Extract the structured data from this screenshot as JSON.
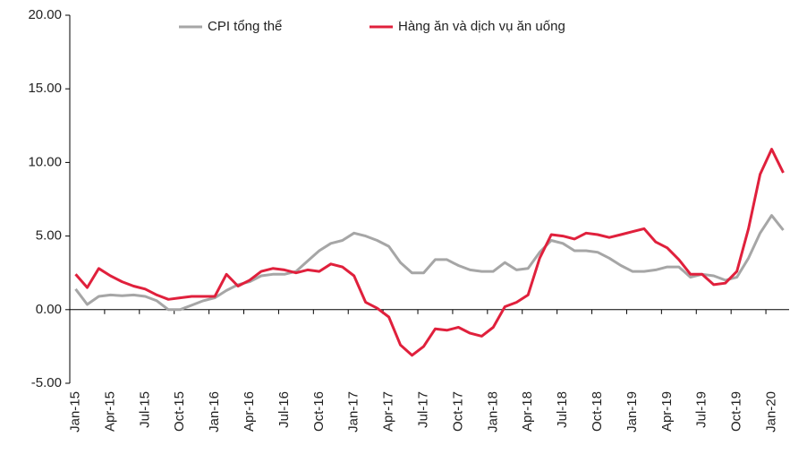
{
  "chart_data": {
    "type": "line",
    "categories": [
      "Jan-15",
      null,
      null,
      "Apr-15",
      null,
      null,
      "Jul-15",
      null,
      null,
      "Oct-15",
      null,
      null,
      "Jan-16",
      null,
      null,
      "Apr-16",
      null,
      null,
      "Jul-16",
      null,
      null,
      "Oct-16",
      null,
      null,
      "Jan-17",
      null,
      null,
      "Apr-17",
      null,
      null,
      "Jul-17",
      null,
      null,
      "Oct-17",
      null,
      null,
      "Jan-18",
      null,
      null,
      "Apr-18",
      null,
      null,
      "Jul-18",
      null,
      null,
      "Oct-18",
      null,
      null,
      "Jan-19",
      null,
      null,
      "Apr-19",
      null,
      null,
      "Jul-19",
      null,
      null,
      "Oct-19",
      null,
      null,
      "Jan-20",
      null
    ],
    "series": [
      {
        "name": "CPI tổng thể",
        "color": "#a6a6a6",
        "values": [
          1.4,
          0.35,
          0.9,
          1.0,
          0.95,
          1.0,
          0.9,
          0.6,
          0.0,
          0.0,
          0.3,
          0.6,
          0.8,
          1.3,
          1.7,
          1.9,
          2.3,
          2.4,
          2.4,
          2.6,
          3.3,
          4.0,
          4.5,
          4.7,
          5.2,
          5.0,
          4.7,
          4.3,
          3.2,
          2.5,
          2.5,
          3.4,
          3.4,
          3.0,
          2.7,
          2.6,
          2.6,
          3.2,
          2.7,
          2.8,
          3.9,
          4.7,
          4.5,
          4.0,
          4.0,
          3.9,
          3.5,
          3.0,
          2.6,
          2.6,
          2.7,
          2.9,
          2.9,
          2.2,
          2.4,
          2.3,
          2.0,
          2.2,
          3.5,
          5.2,
          6.4,
          5.4
        ]
      },
      {
        "name": "Hàng ăn và dịch vụ ăn uống",
        "color": "#e0203c",
        "values": [
          2.4,
          1.5,
          2.8,
          2.3,
          1.9,
          1.6,
          1.4,
          1.0,
          0.7,
          0.8,
          0.9,
          0.9,
          0.9,
          2.4,
          1.6,
          2.0,
          2.6,
          2.8,
          2.7,
          2.5,
          2.7,
          2.6,
          3.1,
          2.9,
          2.3,
          0.5,
          0.1,
          -0.5,
          -2.4,
          -3.1,
          -2.5,
          -1.3,
          -1.4,
          -1.2,
          -1.6,
          -1.8,
          -1.2,
          0.2,
          0.5,
          1.0,
          3.5,
          5.1,
          5.0,
          4.8,
          5.2,
          5.1,
          4.9,
          5.1,
          5.3,
          5.5,
          4.6,
          4.2,
          3.4,
          2.4,
          2.4,
          1.7,
          1.8,
          2.6,
          5.5,
          9.2,
          10.9,
          9.3
        ]
      }
    ],
    "ylim": [
      -5,
      20
    ],
    "yticks": [
      {
        "value": -5,
        "label": "-5.00"
      },
      {
        "value": 0,
        "label": "0.00"
      },
      {
        "value": 5,
        "label": "5.00"
      },
      {
        "value": 10,
        "label": "10.00"
      },
      {
        "value": 15,
        "label": "15.00"
      },
      {
        "value": 20,
        "label": "20.00"
      }
    ],
    "grid": false,
    "legend": "top"
  }
}
